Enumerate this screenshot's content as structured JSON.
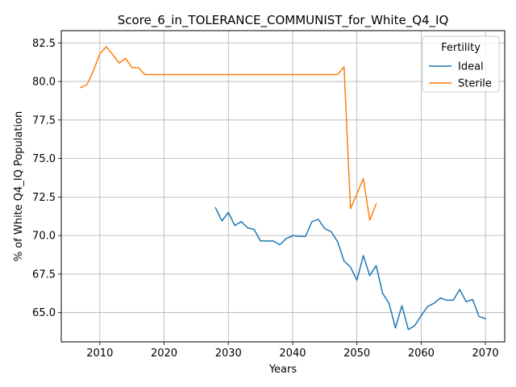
{
  "chart_data": {
    "type": "line",
    "title": "Score_6_in_TOLERANCE_COMMUNIST_for_White_Q4_IQ",
    "xlabel": "Years",
    "ylabel": "% of White Q4_IQ Population",
    "xlim": [
      2004,
      2073
    ],
    "ylim": [
      63.1,
      83.3
    ],
    "xticks": [
      2010,
      2020,
      2030,
      2040,
      2050,
      2060,
      2070
    ],
    "yticks": [
      65.0,
      67.5,
      70.0,
      72.5,
      75.0,
      77.5,
      80.0,
      82.5
    ],
    "xtick_labels": [
      "2010",
      "2020",
      "2030",
      "2040",
      "2050",
      "2060",
      "2070"
    ],
    "ytick_labels": [
      "65.0",
      "67.5",
      "70.0",
      "72.5",
      "75.0",
      "77.5",
      "80.0",
      "82.5"
    ],
    "grid": true,
    "legend": {
      "title": "Fertility",
      "placement": "top-right"
    },
    "series": [
      {
        "name": "Ideal",
        "color": "#1f77b4",
        "x": [
          2028,
          2029,
          2030,
          2031,
          2032,
          2033,
          2034,
          2035,
          2036,
          2037,
          2038,
          2039,
          2040,
          2041,
          2042,
          2043,
          2044,
          2045,
          2046,
          2047,
          2048,
          2049,
          2050,
          2051,
          2052,
          2053,
          2054,
          2055,
          2056,
          2057,
          2058,
          2059,
          2060,
          2061,
          2062,
          2063,
          2064,
          2065,
          2066,
          2067,
          2068,
          2069,
          2070
        ],
        "values": [
          71.8,
          70.95,
          71.5,
          70.65,
          70.9,
          70.5,
          70.4,
          69.65,
          69.65,
          69.65,
          69.4,
          69.8,
          70.0,
          69.95,
          69.95,
          70.9,
          71.05,
          70.45,
          70.25,
          69.6,
          68.35,
          67.95,
          67.1,
          68.7,
          67.4,
          68.05,
          66.25,
          65.6,
          64.0,
          65.45,
          63.9,
          64.15,
          64.8,
          65.4,
          65.6,
          65.95,
          65.8,
          65.8,
          66.5,
          65.7,
          65.85,
          64.75,
          64.6
        ]
      },
      {
        "name": "Sterile",
        "color": "#ff7f0e",
        "x": [
          2007,
          2008,
          2009,
          2010,
          2011,
          2012,
          2013,
          2014,
          2015,
          2016,
          2017,
          2018,
          2019,
          2020,
          2021,
          2022,
          2023,
          2024,
          2025,
          2026,
          2027,
          2028,
          2029,
          2030,
          2031,
          2032,
          2033,
          2034,
          2035,
          2036,
          2037,
          2038,
          2039,
          2040,
          2041,
          2042,
          2043,
          2044,
          2045,
          2046,
          2047,
          2048,
          2049,
          2050,
          2051,
          2052,
          2053
        ],
        "values": [
          79.6,
          79.8,
          80.7,
          81.8,
          82.25,
          81.75,
          81.2,
          81.5,
          80.9,
          80.9,
          80.45,
          80.45,
          80.45,
          80.45,
          80.45,
          80.45,
          80.45,
          80.45,
          80.45,
          80.45,
          80.45,
          80.45,
          80.45,
          80.45,
          80.45,
          80.45,
          80.45,
          80.45,
          80.45,
          80.45,
          80.45,
          80.45,
          80.45,
          80.45,
          80.45,
          80.45,
          80.45,
          80.45,
          80.45,
          80.45,
          80.45,
          80.95,
          71.75,
          72.7,
          73.7,
          71.0,
          72.05
        ]
      }
    ]
  }
}
